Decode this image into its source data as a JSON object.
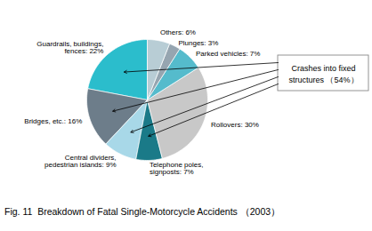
{
  "chart_data": {
    "type": "pie",
    "caption": "Fig. 11  Breakdown of Fatal Single-Motorcycle Accidents （2003）",
    "categories": [
      "Guardrails, buildings, fences: 22%",
      "Bridges, etc.: 16%",
      "Central dividers, pedestrian islands: 9%",
      "Telephone poles, signposts: 7%",
      "Rollovers: 30%",
      "Parked vehicles: 7%",
      "Plunges: 3%",
      "Others: 6%"
    ],
    "values": [
      22,
      16,
      9,
      7,
      30,
      7,
      3,
      6
    ],
    "colors": [
      "#2BBDCC",
      "#6D7D8A",
      "#A8D8E8",
      "#1A7A88",
      "#C8C8C8",
      "#55BBCC",
      "#96A5B0",
      "#B8CDD5"
    ],
    "annotations": [
      {
        "text": "Crashes into fixed\nstructures （54%）",
        "categories": [
          "Guardrails, buildings, fences: 22%",
          "Bridges, etc.: 16%",
          "Central dividers, pedestrian islands: 9%",
          "Telephone poles, signposts: 7%"
        ]
      }
    ]
  }
}
